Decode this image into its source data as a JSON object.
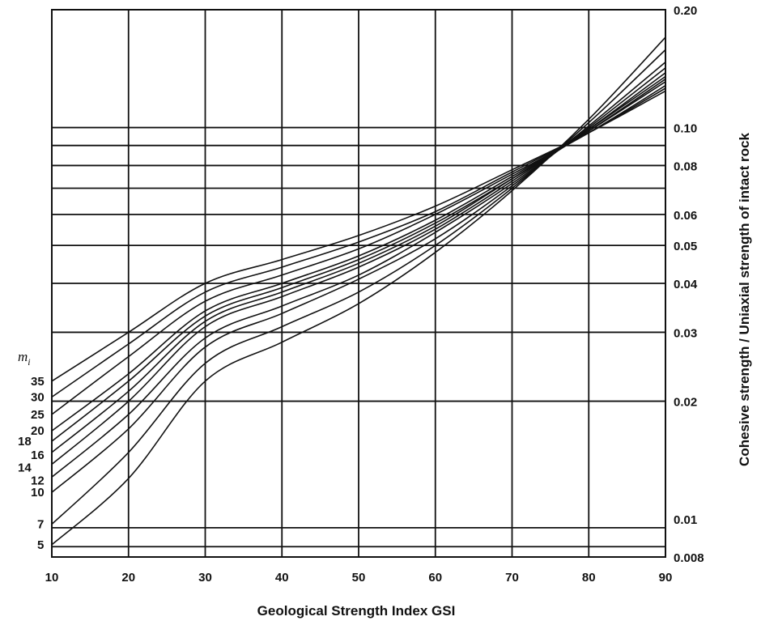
{
  "chart_data": {
    "type": "line",
    "xlabel": "Geological Strength Index  GSI",
    "ylabel": "Cohesive strength / Uniaxial strength of intact rock",
    "xlim": [
      10,
      90
    ],
    "ylim": [
      0.008,
      0.2
    ],
    "y_scale": "log",
    "grid": true,
    "x_ticks": [
      10,
      20,
      30,
      40,
      50,
      60,
      70,
      80,
      90
    ],
    "x_tick_labels": [
      "10",
      "20",
      "30",
      "40",
      "50",
      "60",
      "70",
      "80",
      "90"
    ],
    "y_ticks": [
      0.008,
      0.01,
      0.02,
      0.03,
      0.04,
      0.05,
      0.06,
      0.08,
      0.1,
      0.2
    ],
    "y_tick_labels": [
      "0.008",
      "0.01",
      "0.02",
      "0.03",
      "0.04",
      "0.05",
      "0.06",
      "0.08",
      "0.10",
      "0.20"
    ],
    "y_grid_lines": [
      0.0085,
      0.0095,
      0.02,
      0.03,
      0.04,
      0.05,
      0.06,
      0.07,
      0.08,
      0.09,
      0.1
    ],
    "series_title": "m_i",
    "series": [
      {
        "name": "35",
        "x": [
          10,
          20,
          30,
          40,
          50,
          60,
          70,
          80,
          90
        ],
        "values": [
          0.0225,
          0.03,
          0.04,
          0.046,
          0.053,
          0.063,
          0.078,
          0.097,
          0.124
        ]
      },
      {
        "name": "30",
        "x": [
          10,
          20,
          30,
          40,
          50,
          60,
          70,
          80,
          90
        ],
        "values": [
          0.0205,
          0.028,
          0.038,
          0.044,
          0.051,
          0.061,
          0.077,
          0.097,
          0.126
        ]
      },
      {
        "name": "25",
        "x": [
          10,
          20,
          30,
          40,
          50,
          60,
          70,
          80,
          90
        ],
        "values": [
          0.0185,
          0.026,
          0.036,
          0.042,
          0.049,
          0.06,
          0.076,
          0.097,
          0.128
        ]
      },
      {
        "name": "20",
        "x": [
          10,
          20,
          30,
          40,
          50,
          60,
          70,
          80,
          90
        ],
        "values": [
          0.0168,
          0.0235,
          0.034,
          0.04,
          0.047,
          0.058,
          0.075,
          0.098,
          0.131
        ]
      },
      {
        "name": "18",
        "x": [
          10,
          20,
          30,
          40,
          50,
          60,
          70,
          80,
          90
        ],
        "values": [
          0.0158,
          0.0225,
          0.033,
          0.039,
          0.046,
          0.057,
          0.074,
          0.098,
          0.133
        ]
      },
      {
        "name": "16",
        "x": [
          10,
          20,
          30,
          40,
          50,
          60,
          70,
          80,
          90
        ],
        "values": [
          0.0148,
          0.0212,
          0.032,
          0.038,
          0.045,
          0.056,
          0.074,
          0.099,
          0.135
        ]
      },
      {
        "name": "14",
        "x": [
          10,
          20,
          30,
          40,
          50,
          60,
          70,
          80,
          90
        ],
        "values": [
          0.0138,
          0.02,
          0.031,
          0.037,
          0.044,
          0.055,
          0.073,
          0.099,
          0.138
        ]
      },
      {
        "name": "12",
        "x": [
          10,
          20,
          30,
          40,
          50,
          60,
          70,
          80,
          90
        ],
        "values": [
          0.0128,
          0.0185,
          0.029,
          0.035,
          0.042,
          0.054,
          0.072,
          0.1,
          0.142
        ]
      },
      {
        "name": "10",
        "x": [
          10,
          20,
          30,
          40,
          50,
          60,
          70,
          80,
          90
        ],
        "values": [
          0.0117,
          0.017,
          0.0275,
          0.0335,
          0.041,
          0.052,
          0.071,
          0.101,
          0.147
        ]
      },
      {
        "name": "7",
        "x": [
          10,
          20,
          30,
          40,
          50,
          60,
          70,
          80,
          90
        ],
        "values": [
          0.0097,
          0.0148,
          0.025,
          0.031,
          0.038,
          0.05,
          0.07,
          0.103,
          0.158
        ]
      },
      {
        "name": "5",
        "x": [
          10,
          20,
          30,
          40,
          50,
          60,
          70,
          80,
          90
        ],
        "values": [
          0.0086,
          0.0127,
          0.0225,
          0.0283,
          0.0355,
          0.048,
          0.069,
          0.105,
          0.17
        ]
      }
    ],
    "mi_labels": [
      "35",
      "30",
      "25",
      "20",
      "18",
      "16",
      "14",
      "12",
      "10",
      "7",
      "5"
    ]
  }
}
